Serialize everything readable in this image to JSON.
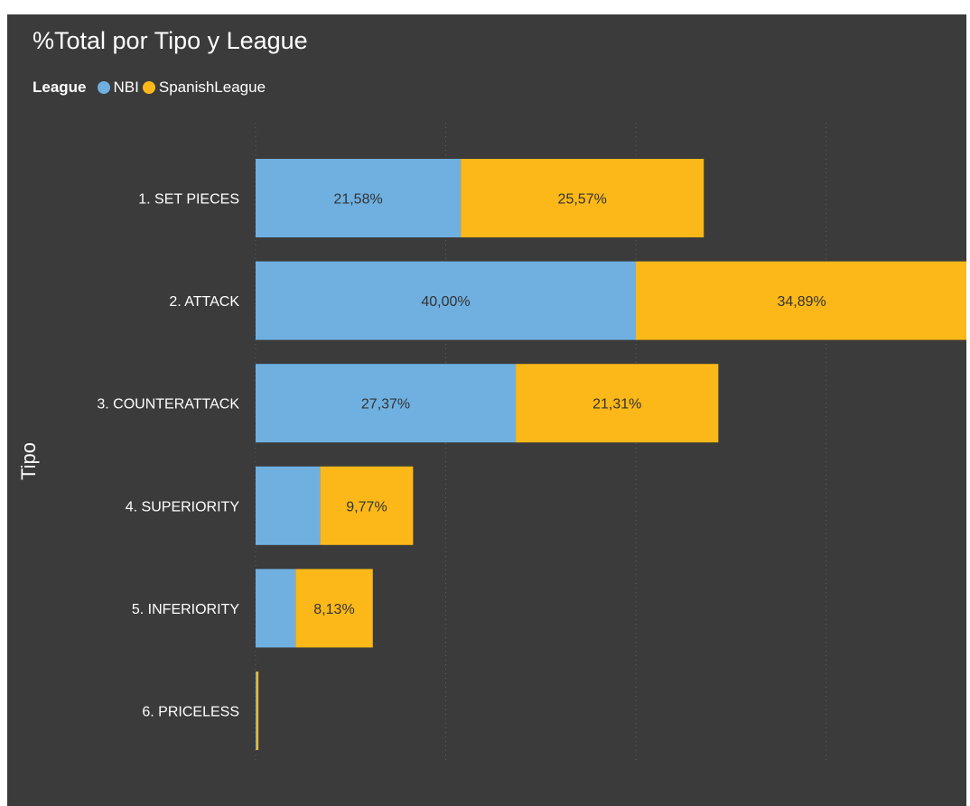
{
  "chart_data": {
    "type": "bar",
    "orientation": "horizontal",
    "stacked": true,
    "title": "%Total por Tipo y League",
    "legend_title": "League",
    "legend_position": "top-left",
    "ylabel": "Tipo",
    "xlim": [
      0,
      80
    ],
    "x_ticks": [
      "0%",
      "20%",
      "40%",
      "60%",
      "80%"
    ],
    "grid": true,
    "categories": [
      "1. SET PIECES",
      "2. ATTACK",
      "3. COUNTERATTACK",
      "4. SUPERIORITY",
      "5. INFERIORITY",
      "6. PRICELESS"
    ],
    "series": [
      {
        "name": "NBI",
        "color": "#6fb0e1",
        "values": [
          21.58,
          40.0,
          27.37,
          6.8,
          4.2,
          0.1
        ],
        "labels": [
          "21,58%",
          "40,00%",
          "27,37%",
          "",
          "",
          ""
        ]
      },
      {
        "name": "SpanishLeague",
        "color": "#fbb818",
        "values": [
          25.57,
          34.89,
          21.31,
          9.77,
          8.13,
          0.2
        ],
        "labels": [
          "25,57%",
          "34,89%",
          "21,31%",
          "9,77%",
          "8,13%",
          ""
        ]
      }
    ]
  }
}
